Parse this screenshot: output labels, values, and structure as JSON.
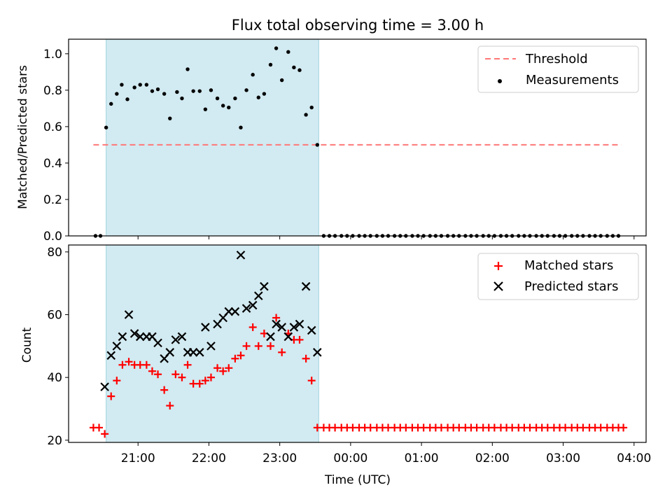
{
  "chart_data": {
    "type": "scatter",
    "title": "Flux total observing time = 3.00 h",
    "xlabel": "Time (UTC)",
    "x_unit": "hours, 21 = 21:00 UTC; values above 24 are after midnight",
    "x_ticks": [
      {
        "value": 21,
        "label": "21:00"
      },
      {
        "value": 22,
        "label": "22:00"
      },
      {
        "value": 23,
        "label": "23:00"
      },
      {
        "value": 24,
        "label": "00:00"
      },
      {
        "value": 25,
        "label": "01:00"
      },
      {
        "value": 26,
        "label": "02:00"
      },
      {
        "value": 27,
        "label": "03:00"
      },
      {
        "value": 28,
        "label": "04:00"
      }
    ],
    "xlim": [
      20.02,
      28.17
    ],
    "shaded_interval": {
      "start": 20.55,
      "end": 23.55,
      "color": "#add8e6"
    },
    "panels": [
      {
        "ylabel": "Matched/Predicted stars",
        "ylim": [
          0,
          1.08
        ],
        "yticks": [
          "0.0",
          "0.2",
          "0.4",
          "0.6",
          "0.8",
          "1.0"
        ],
        "ytick_values": [
          0,
          0.2,
          0.4,
          0.6,
          0.8,
          1.0
        ],
        "legend": {
          "position": "upper right",
          "entries": [
            "Threshold",
            "Measurements"
          ]
        },
        "threshold": {
          "name": "Threshold",
          "value": 0.5,
          "x_range": [
            20.37,
            27.82
          ],
          "color": "#ff7777",
          "style": "dashed"
        },
        "measurements": {
          "name": "Measurements",
          "color": "#000000",
          "points": [
            [
              20.4,
              0
            ],
            [
              20.47,
              0
            ],
            [
              20.55,
              0.595
            ],
            [
              20.62,
              0.725
            ],
            [
              20.7,
              0.78
            ],
            [
              20.77,
              0.83
            ],
            [
              20.85,
              0.75
            ],
            [
              20.95,
              0.815
            ],
            [
              21.03,
              0.83
            ],
            [
              21.12,
              0.83
            ],
            [
              21.2,
              0.795
            ],
            [
              21.28,
              0.805
            ],
            [
              21.37,
              0.78
            ],
            [
              21.45,
              0.645
            ],
            [
              21.55,
              0.79
            ],
            [
              21.62,
              0.755
            ],
            [
              21.7,
              0.915
            ],
            [
              21.78,
              0.795
            ],
            [
              21.87,
              0.795
            ],
            [
              21.95,
              0.695
            ],
            [
              22.03,
              0.8
            ],
            [
              22.12,
              0.755
            ],
            [
              22.2,
              0.715
            ],
            [
              22.28,
              0.705
            ],
            [
              22.37,
              0.755
            ],
            [
              22.45,
              0.595
            ],
            [
              22.53,
              0.8
            ],
            [
              22.62,
              0.885
            ],
            [
              22.7,
              0.76
            ],
            [
              22.78,
              0.78
            ],
            [
              22.87,
              0.94
            ],
            [
              22.95,
              1.03
            ],
            [
              23.03,
              0.855
            ],
            [
              23.12,
              1.01
            ],
            [
              23.2,
              0.925
            ],
            [
              23.28,
              0.91
            ],
            [
              23.37,
              0.665
            ],
            [
              23.45,
              0.705
            ],
            [
              23.53,
              0.5
            ],
            [
              23.62,
              0
            ],
            [
              23.7,
              0
            ],
            [
              23.78,
              0
            ],
            [
              23.87,
              0
            ],
            [
              23.95,
              0
            ],
            [
              24.03,
              0
            ],
            [
              24.12,
              0
            ],
            [
              24.2,
              0
            ],
            [
              24.28,
              0
            ],
            [
              24.37,
              0
            ],
            [
              24.45,
              0
            ],
            [
              24.53,
              0
            ],
            [
              24.62,
              0
            ],
            [
              24.7,
              0
            ],
            [
              24.78,
              0
            ],
            [
              24.87,
              0
            ],
            [
              24.95,
              0
            ],
            [
              25.03,
              0
            ],
            [
              25.12,
              0
            ],
            [
              25.2,
              0
            ],
            [
              25.28,
              0
            ],
            [
              25.37,
              0
            ],
            [
              25.45,
              0
            ],
            [
              25.53,
              0
            ],
            [
              25.62,
              0
            ],
            [
              25.7,
              0
            ],
            [
              25.78,
              0
            ],
            [
              25.87,
              0
            ],
            [
              25.95,
              0
            ],
            [
              26.03,
              0
            ],
            [
              26.12,
              0
            ],
            [
              26.2,
              0
            ],
            [
              26.28,
              0
            ],
            [
              26.37,
              0
            ],
            [
              26.45,
              0
            ],
            [
              26.53,
              0
            ],
            [
              26.62,
              0
            ],
            [
              26.7,
              0
            ],
            [
              26.78,
              0
            ],
            [
              26.87,
              0
            ],
            [
              26.95,
              0
            ],
            [
              27.03,
              0
            ],
            [
              27.12,
              0
            ],
            [
              27.2,
              0
            ],
            [
              27.28,
              0
            ],
            [
              27.37,
              0
            ],
            [
              27.45,
              0
            ],
            [
              27.53,
              0
            ],
            [
              27.62,
              0
            ],
            [
              27.7,
              0
            ],
            [
              27.78,
              0
            ]
          ]
        }
      },
      {
        "ylabel": "Count",
        "ylim": [
          19.3,
          82.2
        ],
        "yticks": [
          "20",
          "40",
          "60",
          "80"
        ],
        "ytick_values": [
          20,
          40,
          60,
          80
        ],
        "legend": {
          "position": "upper right",
          "entries": [
            "Matched stars",
            "Predicted stars"
          ]
        },
        "matched": {
          "name": "Matched stars",
          "color": "#ff0000",
          "marker": "plus",
          "points": [
            [
              20.37,
              24
            ],
            [
              20.45,
              24
            ],
            [
              20.53,
              22
            ],
            [
              20.62,
              34
            ],
            [
              20.7,
              39
            ],
            [
              20.78,
              44
            ],
            [
              20.87,
              45
            ],
            [
              20.95,
              44
            ],
            [
              21.03,
              44
            ],
            [
              21.12,
              44
            ],
            [
              21.2,
              42
            ],
            [
              21.28,
              41
            ],
            [
              21.37,
              36
            ],
            [
              21.45,
              31
            ],
            [
              21.53,
              41
            ],
            [
              21.62,
              40
            ],
            [
              21.7,
              44
            ],
            [
              21.78,
              38
            ],
            [
              21.87,
              38
            ],
            [
              21.95,
              39
            ],
            [
              22.03,
              40
            ],
            [
              22.12,
              43
            ],
            [
              22.2,
              42
            ],
            [
              22.28,
              43
            ],
            [
              22.37,
              46
            ],
            [
              22.45,
              47
            ],
            [
              22.53,
              50
            ],
            [
              22.62,
              56
            ],
            [
              22.7,
              50
            ],
            [
              22.78,
              54
            ],
            [
              22.87,
              50
            ],
            [
              22.95,
              59
            ],
            [
              23.03,
              48
            ],
            [
              23.12,
              54
            ],
            [
              23.2,
              52
            ],
            [
              23.28,
              52
            ],
            [
              23.37,
              46
            ],
            [
              23.45,
              39
            ],
            [
              23.53,
              24
            ],
            [
              23.62,
              24
            ],
            [
              23.7,
              24
            ],
            [
              23.78,
              24
            ],
            [
              23.87,
              24
            ],
            [
              23.95,
              24
            ],
            [
              24.03,
              24
            ],
            [
              24.12,
              24
            ],
            [
              24.2,
              24
            ],
            [
              24.28,
              24
            ],
            [
              24.37,
              24
            ],
            [
              24.45,
              24
            ],
            [
              24.53,
              24
            ],
            [
              24.62,
              24
            ],
            [
              24.7,
              24
            ],
            [
              24.78,
              24
            ],
            [
              24.87,
              24
            ],
            [
              24.95,
              24
            ],
            [
              25.03,
              24
            ],
            [
              25.12,
              24
            ],
            [
              25.2,
              24
            ],
            [
              25.28,
              24
            ],
            [
              25.37,
              24
            ],
            [
              25.45,
              24
            ],
            [
              25.53,
              24
            ],
            [
              25.62,
              24
            ],
            [
              25.7,
              24
            ],
            [
              25.78,
              24
            ],
            [
              25.87,
              24
            ],
            [
              25.95,
              24
            ],
            [
              26.03,
              24
            ],
            [
              26.12,
              24
            ],
            [
              26.2,
              24
            ],
            [
              26.28,
              24
            ],
            [
              26.37,
              24
            ],
            [
              26.45,
              24
            ],
            [
              26.53,
              24
            ],
            [
              26.62,
              24
            ],
            [
              26.7,
              24
            ],
            [
              26.78,
              24
            ],
            [
              26.87,
              24
            ],
            [
              26.95,
              24
            ],
            [
              27.03,
              24
            ],
            [
              27.12,
              24
            ],
            [
              27.2,
              24
            ],
            [
              27.28,
              24
            ],
            [
              27.37,
              24
            ],
            [
              27.45,
              24
            ],
            [
              27.53,
              24
            ],
            [
              27.62,
              24
            ],
            [
              27.7,
              24
            ],
            [
              27.78,
              24
            ],
            [
              27.85,
              24
            ]
          ]
        },
        "predicted": {
          "name": "Predicted stars",
          "color": "#000000",
          "marker": "x",
          "points": [
            [
              20.53,
              37
            ],
            [
              20.62,
              47
            ],
            [
              20.7,
              50
            ],
            [
              20.78,
              53
            ],
            [
              20.87,
              60
            ],
            [
              20.95,
              54
            ],
            [
              21.03,
              53
            ],
            [
              21.12,
              53
            ],
            [
              21.2,
              53
            ],
            [
              21.28,
              51
            ],
            [
              21.37,
              46
            ],
            [
              21.45,
              48
            ],
            [
              21.53,
              52
            ],
            [
              21.62,
              53
            ],
            [
              21.7,
              48
            ],
            [
              21.78,
              48
            ],
            [
              21.87,
              48
            ],
            [
              21.95,
              56
            ],
            [
              22.03,
              50
            ],
            [
              22.12,
              57
            ],
            [
              22.2,
              59
            ],
            [
              22.28,
              61
            ],
            [
              22.37,
              61
            ],
            [
              22.45,
              79
            ],
            [
              22.53,
              62
            ],
            [
              22.62,
              63
            ],
            [
              22.7,
              66
            ],
            [
              22.78,
              69
            ],
            [
              22.87,
              53
            ],
            [
              22.95,
              57
            ],
            [
              23.03,
              56
            ],
            [
              23.12,
              53
            ],
            [
              23.2,
              56
            ],
            [
              23.28,
              57
            ],
            [
              23.37,
              69
            ],
            [
              23.45,
              55
            ],
            [
              23.53,
              48
            ]
          ]
        }
      }
    ]
  }
}
